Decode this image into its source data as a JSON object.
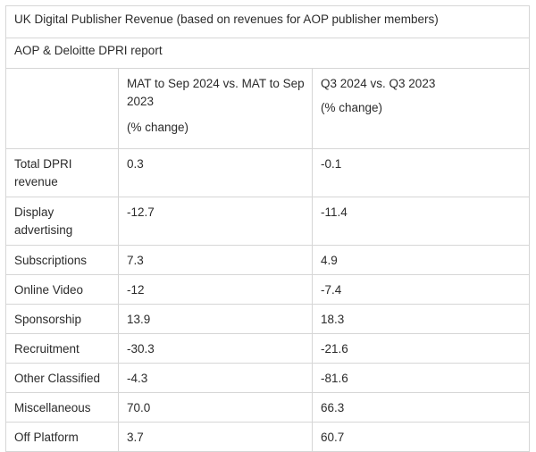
{
  "table": {
    "title": "UK Digital Publisher Revenue (based on revenues for AOP publisher members)",
    "subtitle": "AOP & Deloitte DPRI report",
    "columns": [
      {
        "heading": "MAT to Sep 2024 vs. MAT to Sep 2023",
        "unit": "(% change)"
      },
      {
        "heading": "Q3 2024 vs. Q3 2023",
        "unit": "(% change)"
      }
    ],
    "rows": [
      {
        "label": "Total DPRI revenue",
        "mat": "0.3",
        "q3": "-0.1"
      },
      {
        "label": "Display advertising",
        "mat": "-12.7",
        "q3": "-11.4"
      },
      {
        "label": "Subscriptions",
        "mat": "7.3",
        "q3": "4.9"
      },
      {
        "label": "Online Video",
        "mat": "-12",
        "q3": "-7.4"
      },
      {
        "label": "Sponsorship",
        "mat": "13.9",
        "q3": "18.3"
      },
      {
        "label": "Recruitment",
        "mat": "-30.3",
        "q3": "-21.6"
      },
      {
        "label": "Other Classified",
        "mat": "-4.3",
        "q3": "-81.6"
      },
      {
        "label": "Miscellaneous",
        "mat": "70.0",
        "q3": "66.3"
      },
      {
        "label": "Off Platform",
        "mat": "3.7",
        "q3": "60.7"
      }
    ]
  }
}
